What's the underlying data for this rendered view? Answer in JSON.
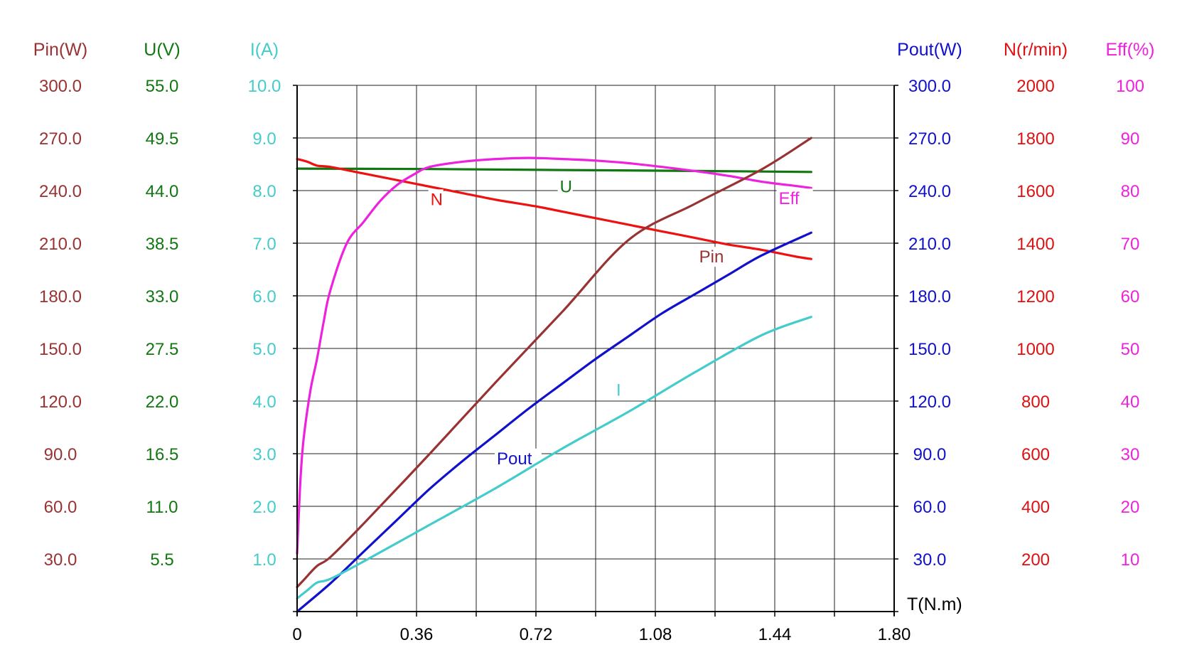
{
  "chart_data": {
    "type": "line",
    "title": "",
    "xlabel": "T(N.m)",
    "x_ticks": [
      "0",
      "0.36",
      "0.72",
      "1.08",
      "1.44",
      "1.80"
    ],
    "xlim": [
      0,
      1.8
    ],
    "grid": true,
    "axes": {
      "Pin": {
        "label": "Pin(W)",
        "color": "#993333",
        "range": [
          0,
          300
        ],
        "ticks": [
          "300.0",
          "270.0",
          "240.0",
          "210.0",
          "180.0",
          "150.0",
          "120.0",
          "90.0",
          "60.0",
          "30.0"
        ]
      },
      "U": {
        "label": "U(V)",
        "color": "#117711",
        "range": [
          0,
          55
        ],
        "ticks": [
          "55.0",
          "49.5",
          "44.0",
          "38.5",
          "33.0",
          "27.5",
          "22.0",
          "16.5",
          "11.0",
          "5.5"
        ]
      },
      "I": {
        "label": "I(A)",
        "color": "#44cccc",
        "range": [
          0,
          10
        ],
        "ticks": [
          "10.0",
          "9.0",
          "8.0",
          "7.0",
          "6.0",
          "5.0",
          "4.0",
          "3.0",
          "2.0",
          "1.0"
        ]
      },
      "Pout": {
        "label": "Pout(W)",
        "color": "#1111cc",
        "range": [
          0,
          300
        ],
        "ticks": [
          "300.0",
          "270.0",
          "240.0",
          "210.0",
          "180.0",
          "150.0",
          "120.0",
          "90.0",
          "60.0",
          "30.0"
        ]
      },
      "N": {
        "label": "N(r/min)",
        "color": "#dd1111",
        "range": [
          0,
          2000
        ],
        "ticks": [
          "2000",
          "1800",
          "1600",
          "1400",
          "1200",
          "1000",
          "800",
          "600",
          "400",
          "200"
        ]
      },
      "Eff": {
        "label": "Eff(%)",
        "color": "#ee22dd",
        "range": [
          0,
          100
        ],
        "ticks": [
          "100",
          "90",
          "80",
          "70",
          "60",
          "50",
          "40",
          "30",
          "20",
          "10"
        ]
      }
    },
    "series": [
      {
        "name": "U",
        "axis": "U",
        "color": "#117711",
        "x": [
          0,
          0.4,
          0.8,
          1.2,
          1.55
        ],
        "y": [
          46.3,
          46.25,
          46.15,
          46.05,
          45.95
        ],
        "label_at": [
          0.79,
          43.8
        ]
      },
      {
        "name": "N",
        "axis": "N",
        "color": "#ee1111",
        "x": [
          0,
          0.03,
          0.06,
          0.1,
          0.2,
          0.3,
          0.4,
          0.5,
          0.6,
          0.72,
          0.8,
          0.9,
          1.0,
          1.1,
          1.2,
          1.3,
          1.4,
          1.5,
          1.55
        ],
        "y": [
          1720,
          1710,
          1695,
          1690,
          1665,
          1640,
          1615,
          1590,
          1565,
          1540,
          1520,
          1495,
          1470,
          1445,
          1420,
          1395,
          1375,
          1350,
          1340
        ],
        "label_at": [
          0.4,
          1545
        ]
      },
      {
        "name": "Eff",
        "axis": "Eff",
        "color": "#ee22dd",
        "x": [
          0,
          0.01,
          0.02,
          0.04,
          0.06,
          0.08,
          0.1,
          0.15,
          0.2,
          0.25,
          0.3,
          0.35,
          0.4,
          0.5,
          0.6,
          0.7,
          0.8,
          0.9,
          1.0,
          1.1,
          1.2,
          1.3,
          1.4,
          1.5,
          1.55
        ],
        "y": [
          11,
          25,
          33,
          42,
          48,
          55,
          61,
          70,
          74,
          78,
          81,
          83,
          84.5,
          85.5,
          86,
          86.2,
          86,
          85.7,
          85.2,
          84.5,
          83.7,
          82.8,
          81.7,
          80.9,
          80.5
        ],
        "label_at": [
          1.45,
          77.4
        ]
      },
      {
        "name": "Pin",
        "axis": "Pin",
        "color": "#993333",
        "x": [
          0,
          0.02,
          0.06,
          0.1,
          0.2,
          0.4,
          0.6,
          0.8,
          1.0,
          1.2,
          1.4,
          1.55
        ],
        "y": [
          14,
          18,
          26,
          31,
          50,
          90,
          131,
          171,
          212,
          232.5,
          252,
          270
        ],
        "label_at": [
          1.21,
          199
        ]
      },
      {
        "name": "Pout",
        "axis": "Pout",
        "color": "#1111cc",
        "x": [
          0,
          0.1,
          0.2,
          0.3,
          0.4,
          0.5,
          0.6,
          0.7,
          0.8,
          0.9,
          1.0,
          1.1,
          1.2,
          1.3,
          1.4,
          1.55
        ],
        "y": [
          0,
          16,
          34,
          52,
          70,
          86,
          101,
          116,
          130,
          144,
          157,
          170,
          181,
          192,
          203,
          216
        ],
        "label_at": [
          0.6,
          84
        ]
      },
      {
        "name": "I",
        "axis": "I",
        "color": "#44cccc",
        "x": [
          0,
          0.03,
          0.06,
          0.1,
          0.2,
          0.4,
          0.6,
          0.8,
          1.0,
          1.2,
          1.4,
          1.55
        ],
        "y": [
          0.25,
          0.4,
          0.55,
          0.62,
          0.95,
          1.65,
          2.35,
          3.1,
          3.8,
          4.55,
          5.25,
          5.6
        ],
        "label_at": [
          0.96,
          4.1
        ]
      }
    ]
  }
}
